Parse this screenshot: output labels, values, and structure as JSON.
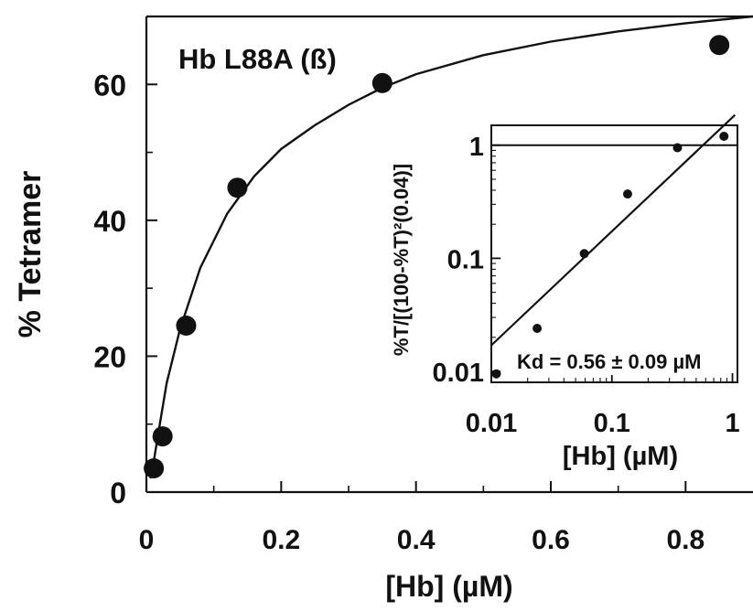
{
  "chart_data": [
    {
      "type": "scatter",
      "title": "",
      "annotation": "Hb L88A (ß)",
      "xlabel": "[Hb] (µM)",
      "ylabel": "% Tetramer",
      "xlim": [
        0,
        0.9
      ],
      "ylim": [
        0,
        70
      ],
      "x_ticks": [
        0,
        0.2,
        0.4,
        0.6,
        0.8
      ],
      "x_tick_labels": [
        "0",
        "0.2",
        "0.4",
        "0.6",
        "0.8"
      ],
      "y_ticks": [
        0,
        20,
        40,
        60
      ],
      "y_tick_labels": [
        "0",
        "20",
        "40",
        "60"
      ],
      "grid": false,
      "series": [
        {
          "kind": "points",
          "x": [
            0.011,
            0.024,
            0.059,
            0.135,
            0.35,
            0.85
          ],
          "y": [
            3.5,
            8.2,
            24.5,
            44.8,
            60.2,
            65.8
          ]
        },
        {
          "kind": "fit-curve",
          "x": [
            0.006,
            0.01,
            0.02,
            0.03,
            0.05,
            0.08,
            0.12,
            0.16,
            0.2,
            0.25,
            0.3,
            0.35,
            0.4,
            0.5,
            0.6,
            0.7,
            0.8,
            0.9
          ],
          "y": [
            2.0,
            4.0,
            10.0,
            16.0,
            24.0,
            33.0,
            41.0,
            46.5,
            50.5,
            54.0,
            57.0,
            59.5,
            61.5,
            64.3,
            66.3,
            67.8,
            69.0,
            70.0
          ]
        }
      ]
    },
    {
      "type": "scatter",
      "title": "",
      "xlabel": "[Hb] (µM)",
      "ylabel": "%T/[(100-%T)²(0.04)]",
      "annotation": "Kd = 0.56 ± 0.09 µM",
      "xscale": "log",
      "yscale": "log",
      "xlim": [
        0.01,
        1.1
      ],
      "ylim": [
        0.008,
        1.5
      ],
      "x_ticks": [
        0.01,
        0.1,
        1
      ],
      "x_tick_labels": [
        "0.01",
        "0.1",
        "1"
      ],
      "y_ticks": [
        0.01,
        0.1,
        1
      ],
      "y_tick_labels": [
        "0.01",
        "0.1",
        "1"
      ],
      "grid": false,
      "reference_line_y": 1,
      "series": [
        {
          "kind": "points",
          "x": [
            0.011,
            0.024,
            0.059,
            0.135,
            0.35,
            0.85
          ],
          "y": [
            0.0095,
            0.024,
            0.11,
            0.37,
            0.95,
            1.2
          ]
        },
        {
          "kind": "fit-line",
          "x": [
            0.01,
            1.05
          ],
          "y": [
            0.017,
            1.85
          ]
        }
      ]
    }
  ]
}
